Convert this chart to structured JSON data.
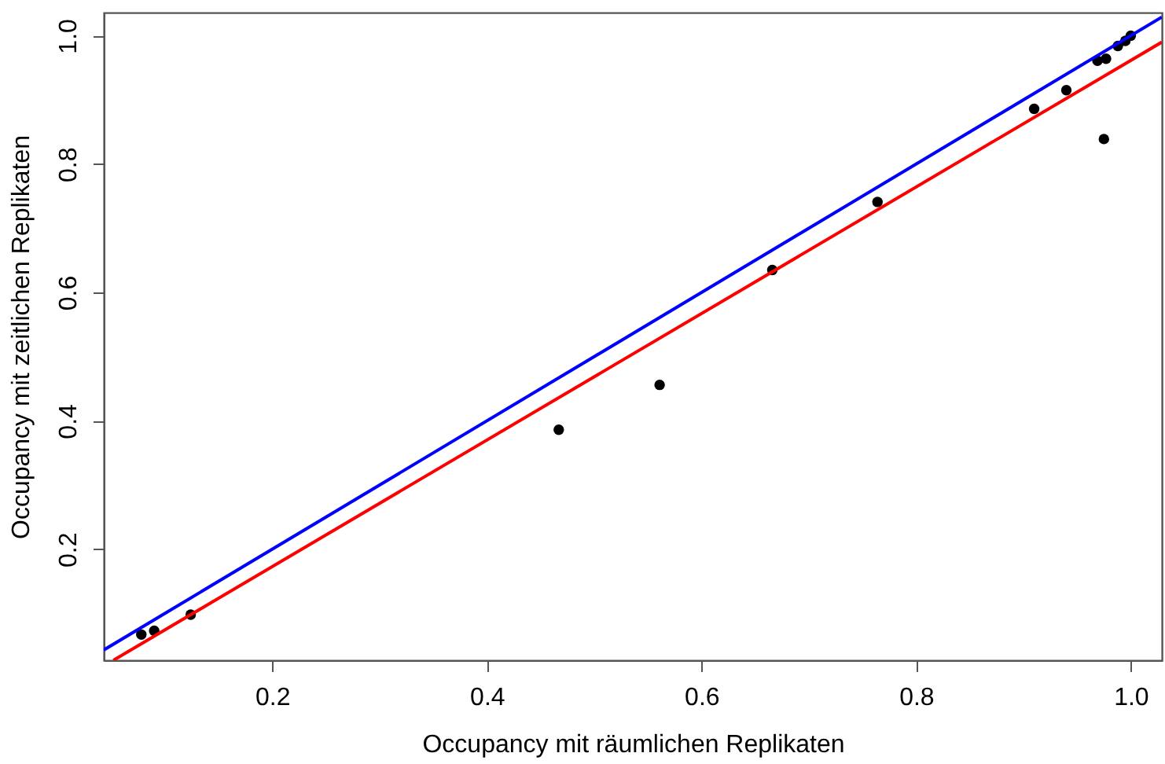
{
  "chart_data": {
    "type": "scatter",
    "xlabel": "Occupancy mit räumlichen Replikaten",
    "ylabel": "Occupancy mit zeitlichen Replikaten",
    "xlim": [
      0.043,
      1.029
    ],
    "ylim": [
      0.027,
      1.036
    ],
    "xticks": [
      0.2,
      0.4,
      0.6,
      0.8,
      {
        "value": 1,
        "label": "1.0"
      }
    ],
    "yticks": [
      0.2,
      0.4,
      0.6,
      0.8,
      {
        "value": 1,
        "label": "1.0"
      }
    ],
    "grid": false,
    "series": [
      {
        "color": "#000000",
        "marker": "circle",
        "x": [
          0.078,
          0.09,
          0.124,
          0.467,
          0.561,
          0.666,
          0.764,
          0.91,
          0.94,
          0.969,
          0.977,
          0.975,
          0.988,
          0.995,
          1.0
        ],
        "values": [
          0.067,
          0.073,
          0.098,
          0.386,
          0.456,
          0.635,
          0.741,
          0.886,
          0.915,
          0.961,
          0.964,
          0.839,
          0.984,
          0.992,
          1.0
        ]
      },
      {
        "type": "line",
        "color": "#0000ff",
        "line_style": "solid",
        "marker": "none",
        "x": [
          0.043,
          1.029
        ],
        "values": [
          0.043,
          1.029
        ]
      },
      {
        "type": "line",
        "color": "#ff0000",
        "line_style": "solid",
        "marker": "none",
        "x": [
          0.052,
          1.029
        ],
        "values": [
          0.027,
          0.99
        ]
      }
    ]
  }
}
